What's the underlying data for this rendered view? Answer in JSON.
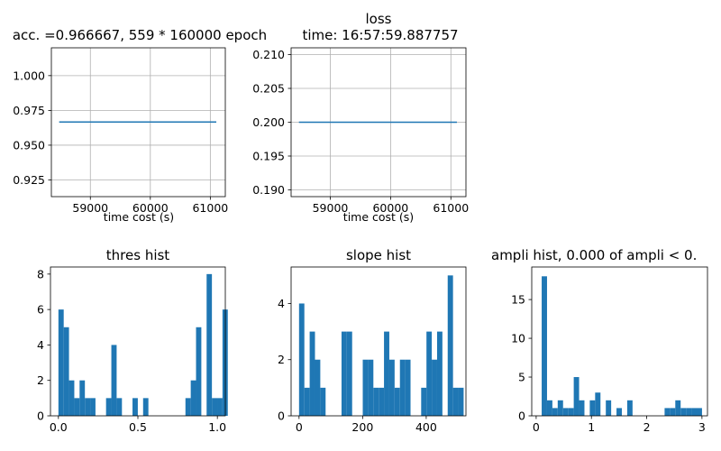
{
  "chart_data": [
    {
      "type": "line",
      "title": "acc. =0.966667, 559 * 160000 epoch",
      "xlabel": "time cost (s)",
      "ylabel": "",
      "xlim": [
        58350,
        61250
      ],
      "ylim": [
        0.913,
        1.02
      ],
      "xticks": [
        59000,
        60000,
        61000
      ],
      "yticks": [
        0.925,
        0.95,
        0.975,
        1.0
      ],
      "xtick_labels": [
        "59000",
        "60000",
        "61000"
      ],
      "ytick_labels": [
        "0.925",
        "0.950",
        "0.975",
        "1.000"
      ],
      "grid": true,
      "color": "#1f77b4",
      "x": [
        58480,
        61100
      ],
      "y": [
        0.966667,
        0.966667
      ]
    },
    {
      "type": "line",
      "title_lines": [
        "loss",
        "time: 16:57:59.887757"
      ],
      "xlabel": "time cost (s)",
      "ylabel": "",
      "xlim": [
        58350,
        61250
      ],
      "ylim": [
        0.189,
        0.211
      ],
      "xticks": [
        59000,
        60000,
        61000
      ],
      "yticks": [
        0.19,
        0.195,
        0.2,
        0.205,
        0.21
      ],
      "xtick_labels": [
        "59000",
        "60000",
        "61000"
      ],
      "ytick_labels": [
        "0.190",
        "0.195",
        "0.200",
        "0.205",
        "0.210"
      ],
      "grid": true,
      "color": "#1f77b4",
      "x": [
        58480,
        61100
      ],
      "y": [
        0.2,
        0.2
      ]
    },
    {
      "type": "bar",
      "title": "thres hist",
      "xlim": [
        -0.05,
        1.05
      ],
      "ylim": [
        0,
        8.4
      ],
      "xticks": [
        0.0,
        0.5,
        1.0
      ],
      "yticks": [
        0,
        2,
        4,
        6,
        8
      ],
      "xtick_labels": [
        "0.0",
        "0.5",
        "1.0"
      ],
      "ytick_labels": [
        "0",
        "2",
        "4",
        "6",
        "8"
      ],
      "color": "#1f77b4",
      "bin_start": 0.0,
      "bin_width": 0.0333,
      "values": [
        6,
        5,
        2,
        1,
        2,
        1,
        1,
        0,
        0,
        1,
        4,
        1,
        0,
        0,
        1,
        0,
        1,
        0,
        0,
        0,
        0,
        0,
        0,
        0,
        1,
        2,
        5,
        0,
        8,
        1,
        1,
        6
      ]
    },
    {
      "type": "bar",
      "title": "slope hist",
      "xlim": [
        -25,
        525
      ],
      "ylim": [
        0,
        5.3
      ],
      "xticks": [
        0,
        200,
        400
      ],
      "yticks": [
        0,
        2,
        4
      ],
      "xtick_labels": [
        "0",
        "200",
        "400"
      ],
      "ytick_labels": [
        "0",
        "2",
        "4"
      ],
      "color": "#1f77b4",
      "bin_start": 0,
      "bin_width": 16.7,
      "values": [
        4,
        1,
        3,
        2,
        1,
        0,
        0,
        0,
        3,
        3,
        0,
        0,
        2,
        2,
        1,
        1,
        3,
        2,
        1,
        2,
        2,
        0,
        0,
        1,
        3,
        2,
        3,
        0,
        5,
        1,
        1
      ]
    },
    {
      "type": "bar",
      "title": "ampli hist, 0.000 of ampli < 0.",
      "xlim": [
        -0.08,
        3.1
      ],
      "ylim": [
        0,
        19.2
      ],
      "xticks": [
        0,
        1,
        2,
        3
      ],
      "yticks": [
        0,
        5,
        10,
        15
      ],
      "xtick_labels": [
        "0",
        "1",
        "2",
        "3"
      ],
      "ytick_labels": [
        "0",
        "5",
        "10",
        "15"
      ],
      "color": "#1f77b4",
      "bin_start": 0.1,
      "bin_width": 0.0967,
      "values": [
        18,
        2,
        1,
        2,
        1,
        1,
        5,
        2,
        0,
        2,
        3,
        0,
        2,
        0,
        1,
        0,
        2,
        0,
        0,
        0,
        0,
        0,
        0,
        1,
        1,
        2,
        1,
        1,
        1,
        1
      ]
    }
  ]
}
